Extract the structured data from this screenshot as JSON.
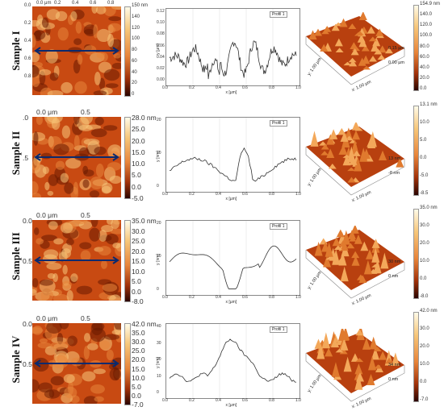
{
  "samples": [
    {
      "label": "Sample I",
      "image_top_labels": [
        "0.0 μm",
        "0.2",
        "0.4",
        "0.6",
        "0.8"
      ],
      "image_left_labels": [
        "0.0",
        "0.2",
        "0.4",
        "0.6",
        "0.8"
      ],
      "colorbar_labels": [
        "150 nm",
        "140",
        "120",
        "100",
        "80",
        "60",
        "40",
        "20",
        "0"
      ],
      "profile_legend": "Profil 1",
      "profile_ylabel": "y [µm]",
      "profile_xlabel": "x [µm]",
      "profile_yticks": [
        "0.12",
        "0.10",
        "0.08",
        "0.06",
        "0.04",
        "0.02",
        "0.00"
      ],
      "profile_xticks": [
        "0.0",
        "0.2",
        "0.4",
        "0.6",
        "0.8",
        "1.0"
      ],
      "surface_scale": [
        "154.9 nm",
        "140.0",
        "120.0",
        "100.0",
        "80.0",
        "60.0",
        "40.0",
        "20.0",
        "0.0"
      ],
      "surface_zlabels": [
        "0.15 µm",
        "0.00 µm"
      ],
      "surface_axes": [
        "y: 1.00 µm",
        "x: 1.00 µm"
      ]
    },
    {
      "label": "Sample II",
      "image_top_labels": [
        "0.0 μm",
        "0.5"
      ],
      "image_left_labels": [
        ".0",
        ".5"
      ],
      "colorbar_labels": [
        "28.0 nm",
        "25.0",
        "20.0",
        "15.0",
        "10.0",
        "5.0",
        "0.0",
        "-5.0"
      ],
      "profile_legend": "Profil 1",
      "profile_ylabel": "y [nm]",
      "profile_xlabel": "x [µm]",
      "profile_yticks": [
        "20",
        "10",
        "0"
      ],
      "profile_xticks": [
        "0.0",
        "0.2",
        "0.4",
        "0.6",
        "0.8",
        "1.0"
      ],
      "surface_scale": [
        "13.1 nm",
        "10.0",
        "5.0",
        "0.0",
        "-5.0",
        "-8.5"
      ],
      "surface_zlabels": [
        "13 nm",
        "-8 nm"
      ],
      "surface_axes": [
        "y: 1.00 µm",
        "x: 1.00 µm"
      ]
    },
    {
      "label": "Sample III",
      "image_top_labels": [
        "0.0 μm",
        "0.5"
      ],
      "image_left_labels": [
        "0.0",
        "0.5"
      ],
      "colorbar_labels": [
        "35.0 nm",
        "30.0",
        "25.0",
        "20.0",
        "15.0",
        "10.0",
        "5.0",
        "0.0",
        "-8.0"
      ],
      "profile_legend": "Profil 1",
      "profile_ylabel": "y [nm]",
      "profile_xlabel": "x [µm]",
      "profile_yticks": [
        "20",
        "10",
        "0"
      ],
      "profile_xticks": [
        "0.0",
        "0.2",
        "0.4",
        "0.6",
        "0.8",
        "1.0"
      ],
      "surface_scale": [
        "35.0 nm",
        "30.0",
        "20.0",
        "10.0",
        "0.0",
        "-8.0"
      ],
      "surface_zlabels": [
        "30 nm",
        "0 nm"
      ],
      "surface_axes": [
        "y: 1.00 µm",
        "x: 1.00 µm"
      ]
    },
    {
      "label": "Sample IV",
      "image_top_labels": [
        "0.0 μm",
        "0.5"
      ],
      "image_left_labels": [
        "0.0",
        "0.5"
      ],
      "colorbar_labels": [
        "42.0 nm",
        "35.0",
        "30.0",
        "25.0",
        "20.0",
        "15.0",
        "10.0",
        "5.0",
        "0.0",
        "-7.0"
      ],
      "profile_legend": "Profil 1",
      "profile_ylabel": "y [nm]",
      "profile_xlabel": "x [µm]",
      "profile_yticks": [
        "40",
        "30",
        "20",
        "10",
        "0"
      ],
      "profile_xticks": [
        "0.0",
        "0.2",
        "0.4",
        "0.6",
        "0.8",
        "1.0"
      ],
      "surface_scale": [
        "42.0 nm",
        "30.0",
        "20.0",
        "10.0",
        "0.0",
        "-7.0"
      ],
      "surface_zlabels": [
        "34 nm",
        "0 nm"
      ],
      "surface_axes": [
        "y: 1.00 µm",
        "x: 1.00 µm"
      ]
    }
  ],
  "colors": {
    "afm_dark": "#6a1a00",
    "afm_mid": "#d2561a",
    "afm_light": "#f7c77a",
    "line_arrow": "#0a2a6e",
    "profile_line": "#333333"
  }
}
